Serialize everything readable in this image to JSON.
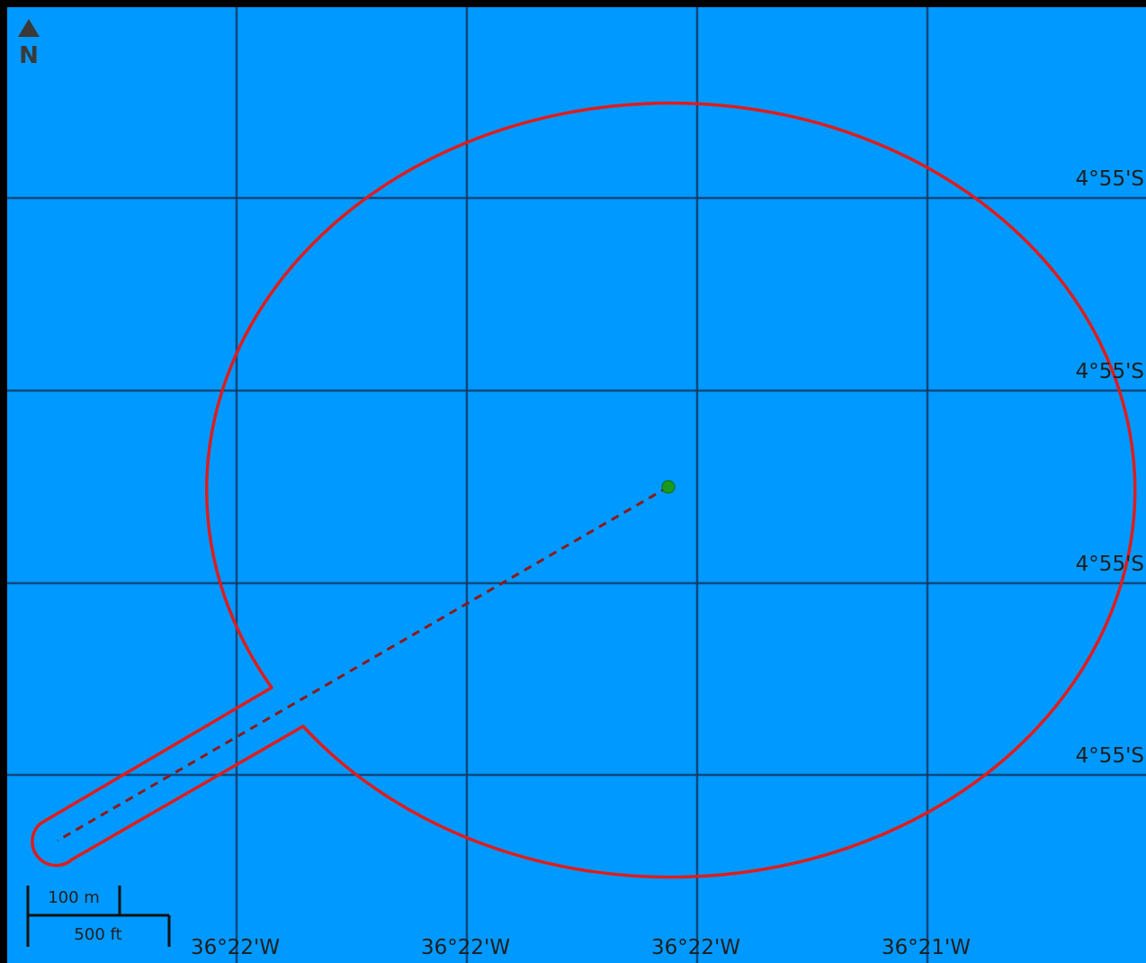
{
  "map": {
    "background_color": "#0099ff",
    "gridline_color": "#123a66",
    "geofence_color": "#dd1d1d",
    "path_color": "#8b1a1a",
    "marker_color": "#1a9a1a",
    "frame_color": "#000000"
  },
  "north_arrow": {
    "icon": "north-arrow-icon",
    "label": "N"
  },
  "grid": {
    "latitude_labels": [
      "4°55'S",
      "4°55'S",
      "4°55'S",
      "4°55'S"
    ],
    "longitude_labels": [
      "36°22'W",
      "36°22'W",
      "36°22'W",
      "36°21'W"
    ]
  },
  "scale_bar": {
    "metric_label": "100 m",
    "imperial_label": "500 ft"
  }
}
